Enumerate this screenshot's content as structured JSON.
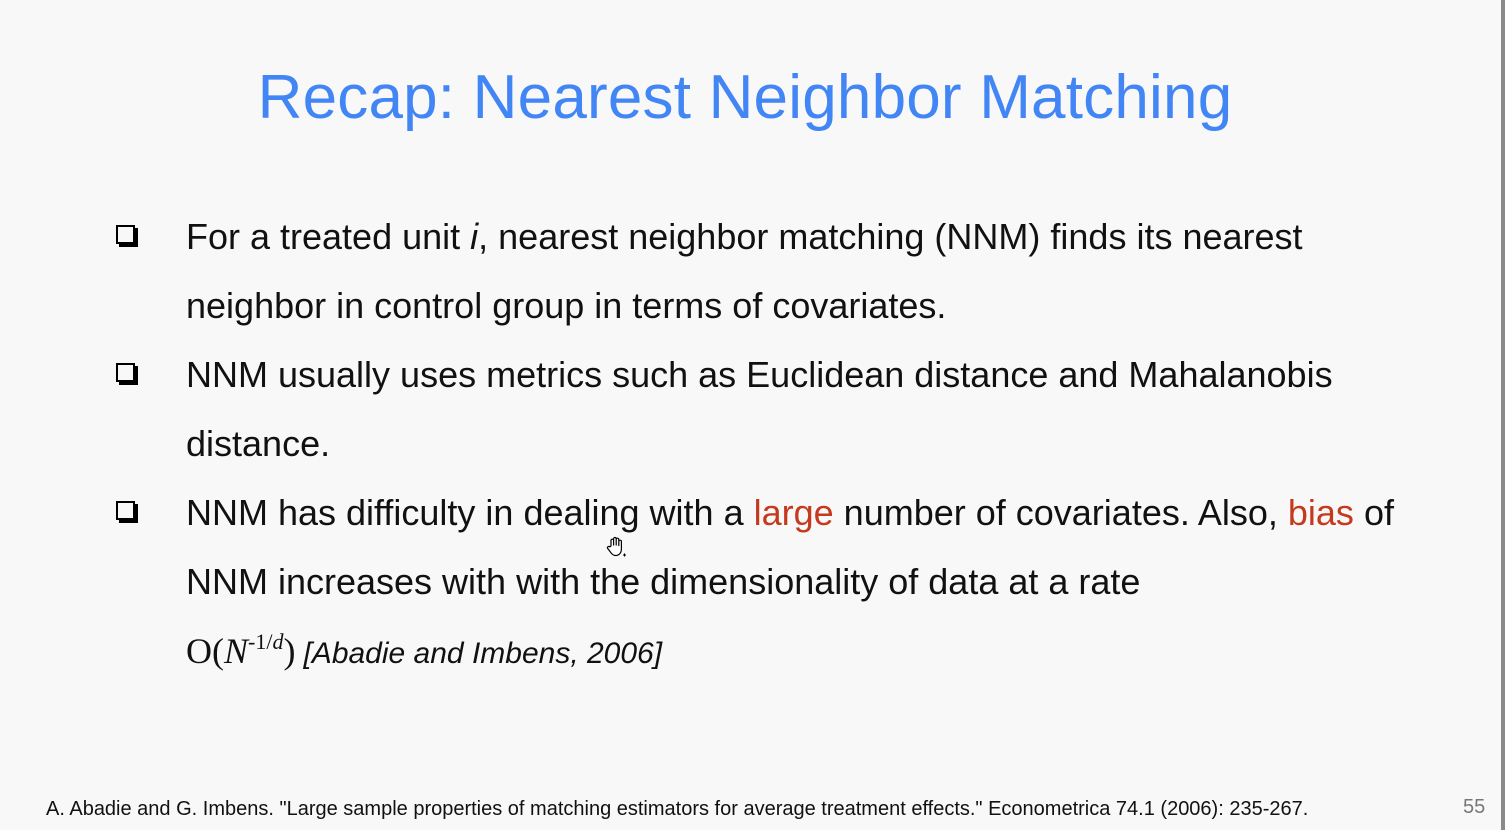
{
  "slide": {
    "title": "Recap: Nearest Neighbor Matching",
    "page_number": "55",
    "accent_color": "#4285f4",
    "highlight_color": "#c5391d"
  },
  "bullets": [
    {
      "marker_icon": "checkbox-icon",
      "part1": "For a treated unit ",
      "italic_var": "i",
      "part2": ", nearest neighbor matching (NNM) finds its nearest neighbor in control group in terms of covariates."
    },
    {
      "marker_icon": "checkbox-icon",
      "text": "NNM usually uses metrics such as Euclidean distance and Mahalanobis distance."
    },
    {
      "marker_icon": "checkbox-icon",
      "part1": "NNM has difficulty in dealing with a ",
      "highlight1": "large",
      "part2": " number of covariates. Also, ",
      "highlight2": "bias",
      "part3": " of NNM increases with with the dimensionality of data at a rate",
      "formula": {
        "open": "O(",
        "var": "N",
        "exponent": "-1/",
        "exponent_var": "d",
        "close": ")"
      },
      "citation": "[Abadie and Imbens, 2006]"
    }
  ],
  "footnote": "A. Abadie and G. Imbens. \"Large sample properties of matching estimators for average treatment effects.\" Econometrica 74.1 (2006): 235-267.",
  "cursor_icon": "hand-cursor-icon"
}
